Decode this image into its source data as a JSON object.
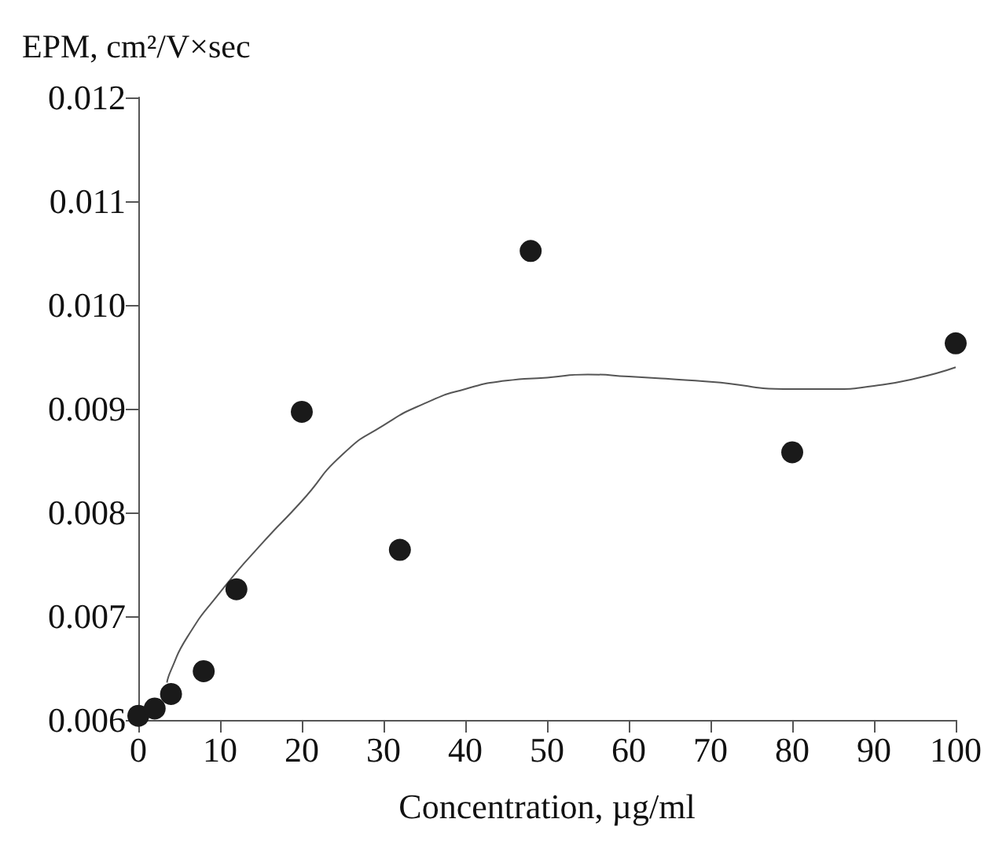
{
  "chart_data": {
    "type": "scatter",
    "xlabel": "Concentration, µg/ml",
    "ylabel": "EPM, cm²/V×sec",
    "xlim": [
      0,
      100
    ],
    "xticks": [
      0,
      10,
      20,
      30,
      40,
      50,
      60,
      70,
      80,
      90,
      100
    ],
    "ylim": [
      0.006,
      0.012
    ],
    "yticks": [
      {
        "value": 0.006,
        "label": "0.006"
      },
      {
        "value": 0.007,
        "label": "0.007"
      },
      {
        "value": 0.008,
        "label": "0.008"
      },
      {
        "value": 0.009,
        "label": "0.009"
      },
      {
        "value": 0.01,
        "label": "0.010"
      },
      {
        "value": 0.011,
        "label": "0.011"
      },
      {
        "value": 0.012,
        "label": "0.012"
      }
    ],
    "grid": false,
    "series": [
      {
        "color": "#1a1a1a",
        "marker": "circle",
        "x": [
          0,
          2,
          4,
          8,
          12,
          20,
          32,
          48,
          80,
          100
        ],
        "values": [
          0.00604,
          0.00611,
          0.00625,
          0.00647,
          0.00726,
          0.00897,
          0.00764,
          0.01052,
          0.00858,
          0.00963
        ]
      },
      {
        "type": "line",
        "color": "#555555",
        "marker": "none",
        "line_style": "solid",
        "x": [
          3.5,
          4,
          6,
          10,
          15,
          20,
          25,
          30,
          35,
          40,
          45,
          50,
          55,
          60,
          70,
          80,
          85,
          90,
          95,
          100
        ],
        "values": [
          0.00636,
          0.00648,
          0.0068,
          0.00723,
          0.00769,
          0.00811,
          0.00856,
          0.00884,
          0.00905,
          0.00919,
          0.00927,
          0.0093,
          0.00933,
          0.00931,
          0.00926,
          0.00919,
          0.00919,
          0.00922,
          0.00929,
          0.0094
        ]
      }
    ]
  }
}
